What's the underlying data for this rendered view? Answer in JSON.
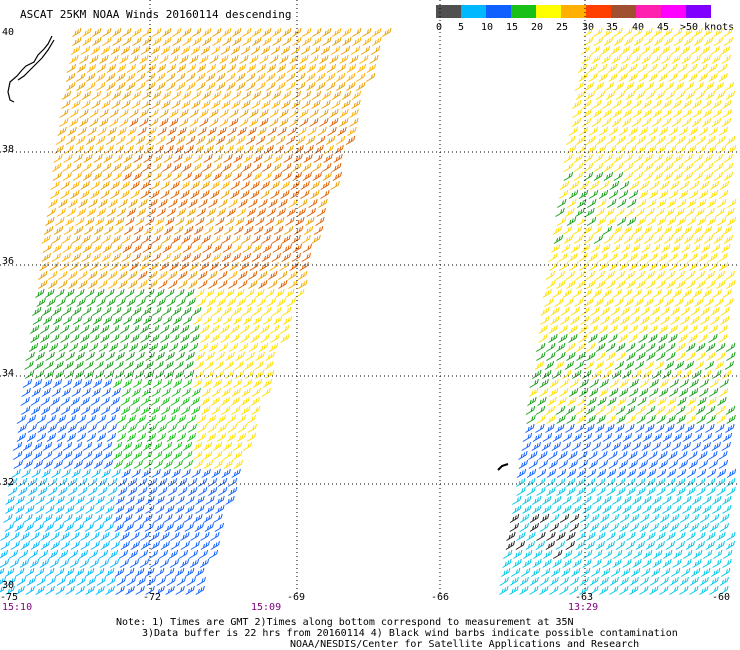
{
  "title": "ASCAT 25KM NOAA Winds 20160114 descending",
  "legend": {
    "labels": [
      "0",
      "5",
      "10",
      "15",
      "20",
      "25",
      "30",
      "35",
      "40",
      "45",
      ">50 knots"
    ],
    "colors": [
      "#202020",
      "#7f7f7f",
      "#00b8ff",
      "#1060ff",
      "#18c018",
      "#ffff00",
      "#ffb000",
      "#ff4000",
      "#ff20b0",
      "#ff00ff",
      "#8000ff"
    ]
  },
  "lat_labels": [
    "40",
    "38",
    "36",
    "34",
    "32",
    "30"
  ],
  "lon_labels": [
    "-75",
    "-72",
    "-69",
    "-66",
    "-63",
    "-60"
  ],
  "pass_times": [
    "15:10",
    "15:09",
    "13:29"
  ],
  "notes": [
    "Note: 1) Times are GMT 2)Times along bottom correspond to measurement at 35N",
    "3)Data buffer is 22 hrs from 20160114 4) Black wind barbs indicate possible contamination",
    "NOAA/NESDIS/Center for Satellite Applications and Research"
  ]
}
